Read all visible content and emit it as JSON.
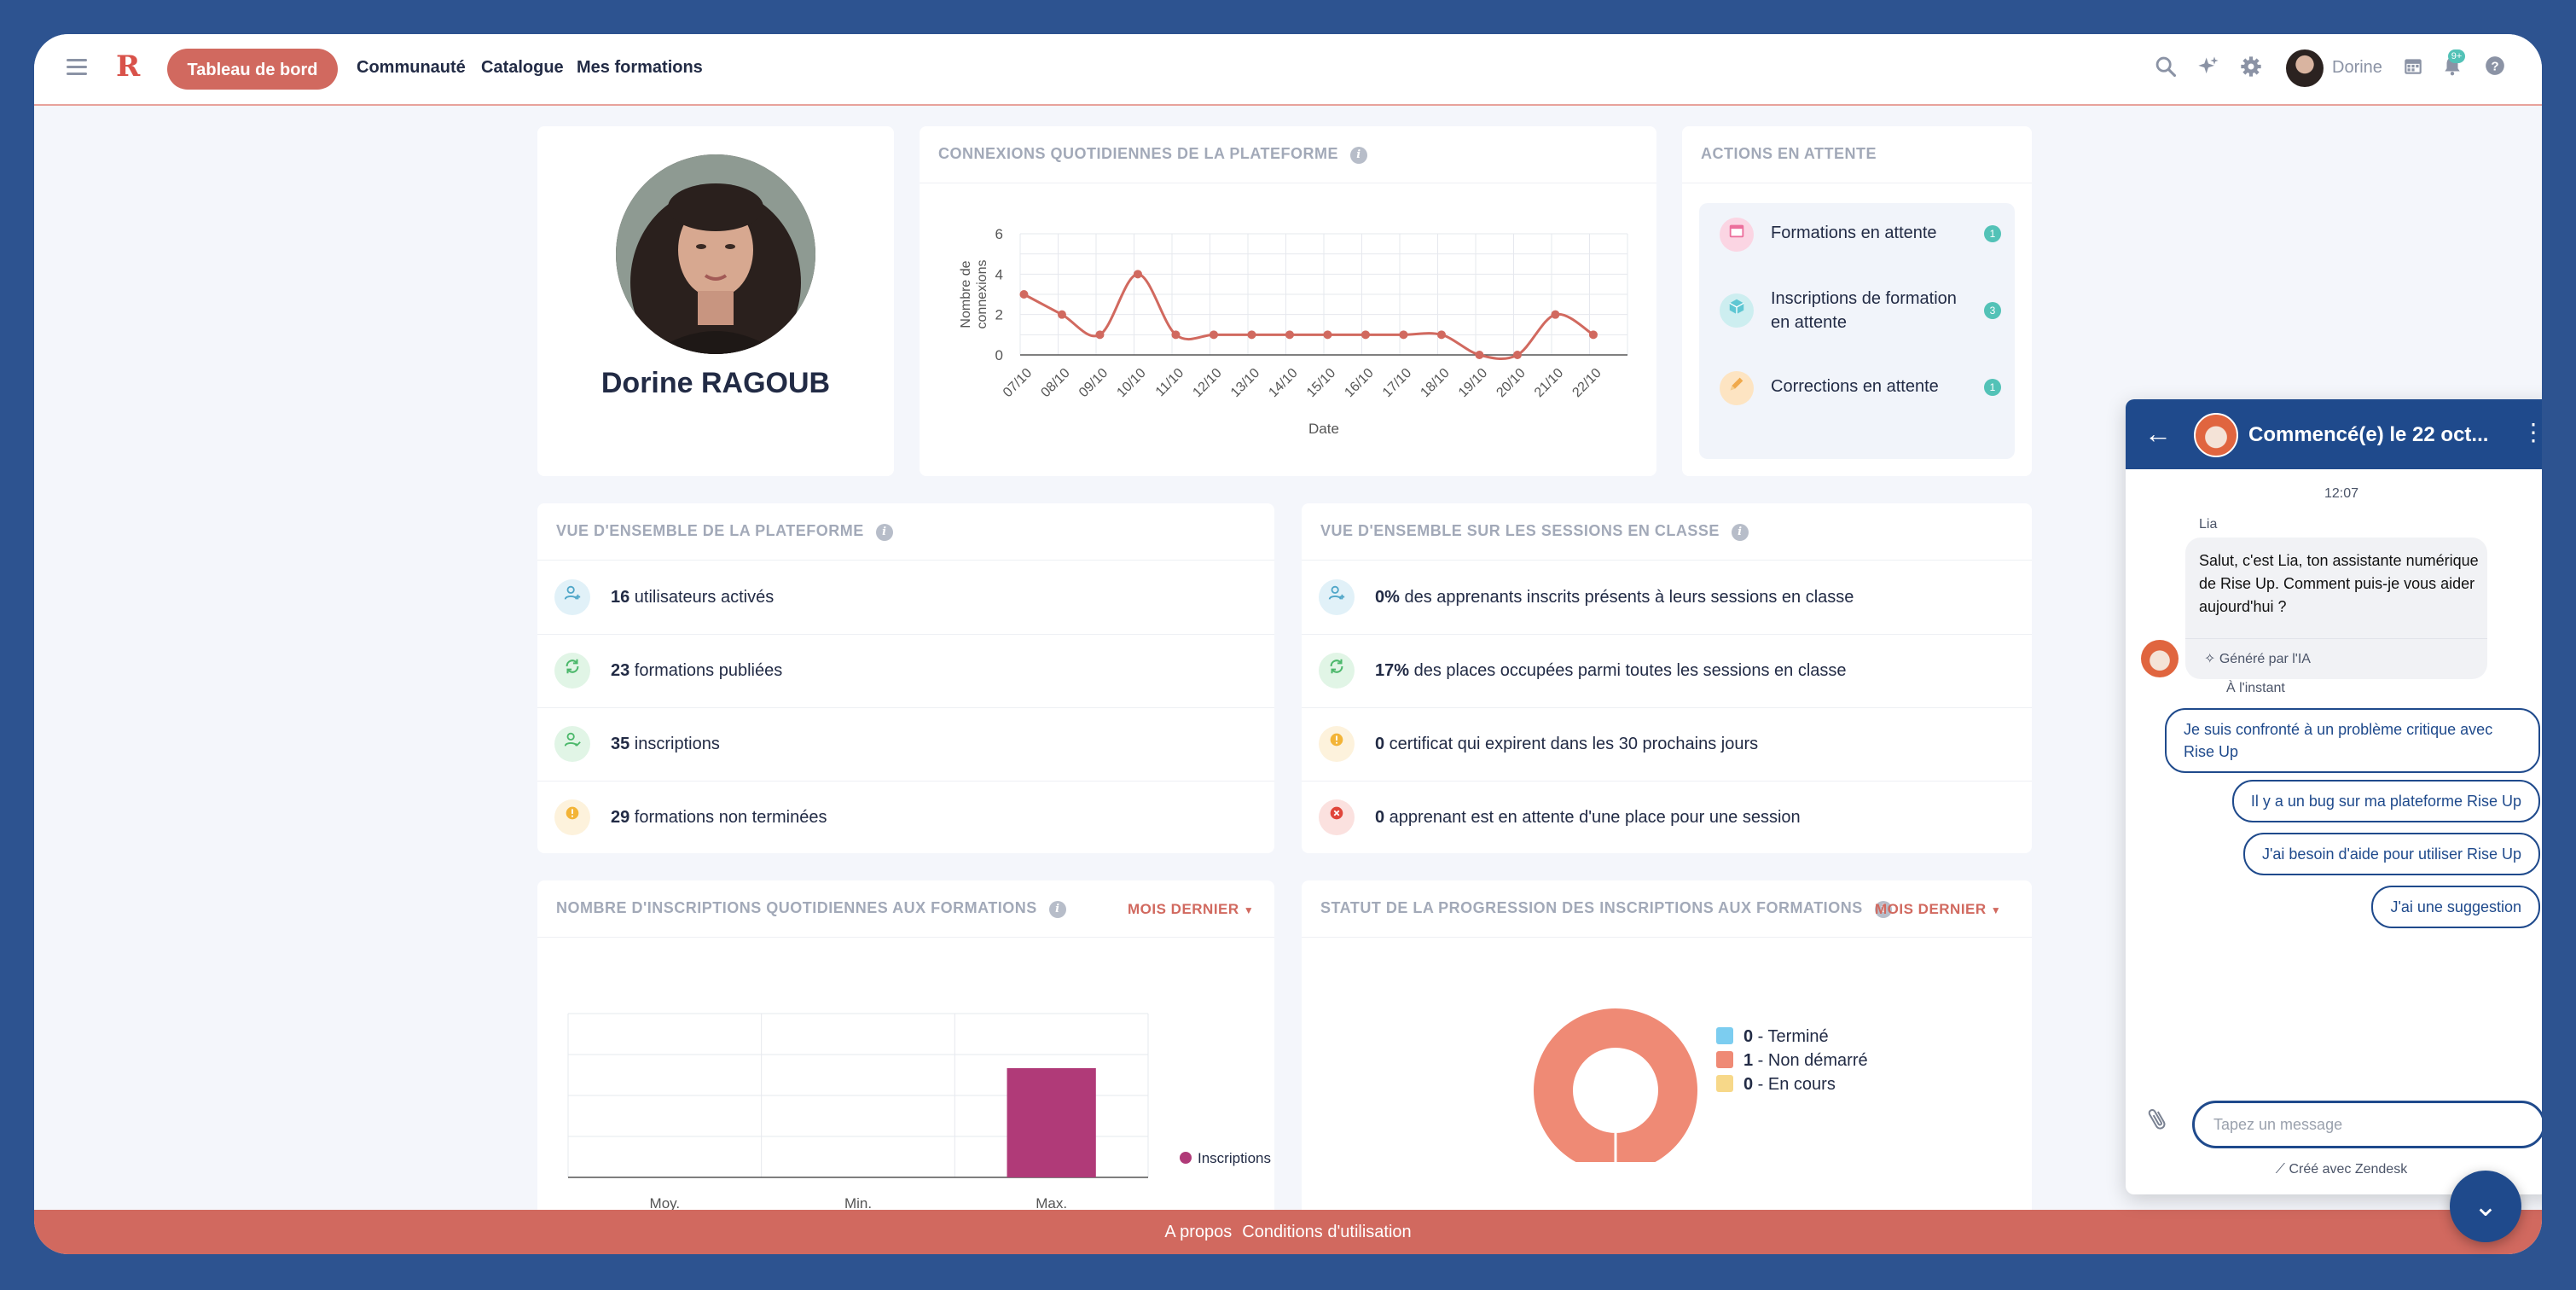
{
  "nav": {
    "active_tab": "Tableau de bord",
    "links": [
      "Communauté",
      "Catalogue",
      "Mes formations"
    ],
    "user_name": "Dorine",
    "notif_badge": "9+",
    "logo": "R"
  },
  "profile": {
    "name": "Dorine RAGOUB"
  },
  "connexions": {
    "title": "CONNEXIONS QUOTIDIENNES DE LA PLATEFORME",
    "chart_data": {
      "type": "line",
      "x": [
        "07/10",
        "08/10",
        "09/10",
        "10/10",
        "11/10",
        "12/10",
        "13/10",
        "14/10",
        "15/10",
        "16/10",
        "17/10",
        "18/10",
        "19/10",
        "20/10",
        "21/10",
        "22/10"
      ],
      "values": [
        3,
        2,
        1,
        4,
        1,
        1,
        1,
        1,
        1,
        1,
        1,
        1,
        0,
        0,
        2,
        1
      ],
      "xlabel": "Date",
      "ylabel": "Nombre de connexions",
      "yticks": [
        "0",
        "2",
        "4",
        "6"
      ],
      "ylim": [
        0,
        6
      ],
      "grid": true
    }
  },
  "pending": {
    "title": "ACTIONS EN ATTENTE",
    "items": [
      {
        "label": "Formations en attente",
        "count": "1"
      },
      {
        "label": "Inscriptions de formation en attente",
        "count": "3"
      },
      {
        "label": "Corrections en attente",
        "count": "1"
      }
    ]
  },
  "platform": {
    "title": "VUE D'ENSEMBLE DE LA PLATEFORME",
    "rows": [
      {
        "value": "16",
        "text": " utilisateurs activés"
      },
      {
        "value": "23",
        "text": " formations publiées"
      },
      {
        "value": "35",
        "text": " inscriptions"
      },
      {
        "value": "29",
        "text": " formations non terminées"
      }
    ]
  },
  "sessions": {
    "title": "VUE D'ENSEMBLE SUR LES SESSIONS EN CLASSE",
    "rows": [
      {
        "value": "0%",
        "text": " des apprenants inscrits présents à leurs sessions en classe"
      },
      {
        "value": "17%",
        "text": " des places occupées parmi toutes les sessions en classe"
      },
      {
        "value": "0",
        "text": " certificat qui expirent dans les 30 prochains jours"
      },
      {
        "value": "0",
        "text": " apprenant est en attente d'une place pour une session"
      }
    ]
  },
  "inscriptions": {
    "title": "NOMBRE D'INSCRIPTIONS QUOTIDIENNES AUX FORMATIONS",
    "filter": "MOIS DERNIER",
    "chart_data": {
      "type": "bar",
      "categories": [
        "Moy.",
        "Min.",
        "Max."
      ],
      "series": [
        {
          "name": "Inscriptions",
          "values": [
            0,
            0,
            1
          ]
        }
      ],
      "ylim": [
        0,
        1.5
      ],
      "legend": "right",
      "color": "#b03a78"
    }
  },
  "progress": {
    "title": "STATUT DE LA PROGRESSION DES INSCRIPTIONS AUX FORMATIONS",
    "filter": "MOIS DERNIER",
    "chart_data": {
      "type": "pie",
      "donut": true,
      "slices": [
        {
          "label": "Terminé",
          "value": 0,
          "color": "#7ccdf0"
        },
        {
          "label": "Non démarré",
          "value": 1,
          "color": "#ef8a75"
        },
        {
          "label": "En cours",
          "value": 0,
          "color": "#f7d889"
        }
      ],
      "legend": "right"
    }
  },
  "footer": {
    "about": "A propos",
    "terms": "Conditions d'utilisation"
  },
  "chat": {
    "title": "Commencé(e) le 22 oct...",
    "time": "12:07",
    "sender": "Lia",
    "message": "Salut, c'est Lia, ton assistante numérique de Rise Up. Comment puis-je vous aider aujourd'hui ?",
    "ai_label": "Généré par l'IA",
    "instant": "À l'instant",
    "suggestions": [
      "Je suis confronté à un problème critique avec Rise Up",
      "Il y a un bug sur ma plateforme Rise Up",
      "J'ai besoin d'aide pour utiliser Rise Up",
      "J'ai une suggestion"
    ],
    "input_placeholder": "Tapez un message",
    "footer": "Créé avec Zendesk"
  }
}
